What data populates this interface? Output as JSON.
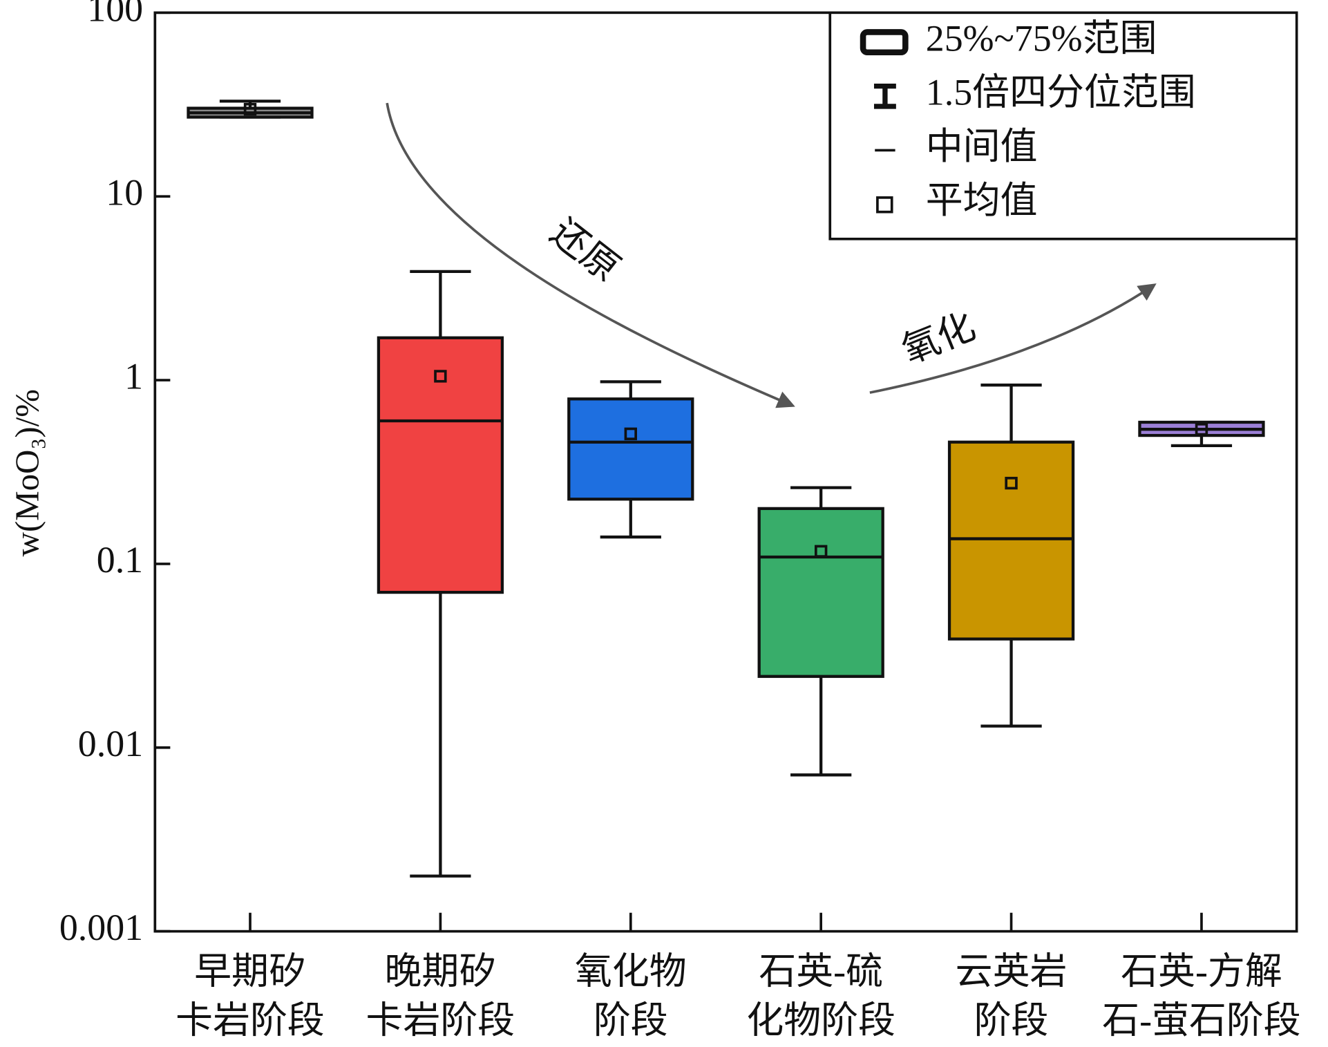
{
  "chart_data": {
    "type": "box",
    "y_label": "w(MoO₃)/%",
    "categories": [
      [
        "早期矽",
        "卡岩阶段"
      ],
      [
        "晚期矽",
        "卡岩阶段"
      ],
      [
        "氧化物",
        "阶段"
      ],
      [
        "石英-硫",
        "化物阶段"
      ],
      [
        "云英岩",
        "阶段"
      ],
      [
        "石英-方解",
        "石-萤石阶段"
      ]
    ],
    "boxes": [
      {
        "whisker_low": 27,
        "q1": 27,
        "median": 28.5,
        "q3": 30.2,
        "whisker_high": 33,
        "mean": 29.8,
        "color": "#8a8a8a"
      },
      {
        "whisker_low": 0.002,
        "q1": 0.07,
        "median": 0.6,
        "q3": 1.7,
        "whisker_high": 3.9,
        "mean": 1.05,
        "color": "#f04242"
      },
      {
        "whisker_low": 0.14,
        "q1": 0.225,
        "median": 0.46,
        "q3": 0.79,
        "whisker_high": 0.98,
        "mean": 0.51,
        "color": "#1e6fe0"
      },
      {
        "whisker_low": 0.0071,
        "q1": 0.0244,
        "median": 0.109,
        "q3": 0.2,
        "whisker_high": 0.26,
        "mean": 0.117,
        "color": "#38ad6a"
      },
      {
        "whisker_low": 0.0131,
        "q1": 0.039,
        "median": 0.137,
        "q3": 0.46,
        "whisker_high": 0.94,
        "mean": 0.275,
        "color": "#c99500"
      },
      {
        "whisker_low": 0.44,
        "q1": 0.5,
        "median": 0.54,
        "q3": 0.59,
        "whisker_high": 0.59,
        "mean": 0.54,
        "color": "#9b7fd6"
      }
    ],
    "ylim": [
      0.001,
      100
    ],
    "yticks": [
      0.001,
      0.01,
      0.1,
      1,
      10,
      100
    ],
    "log_y": true,
    "legend": [
      "25%~75%范围",
      "1.5倍四分位范围",
      "中间值",
      "平均值"
    ],
    "legend_position": "upper right",
    "annotations": [
      "还原",
      "氧化"
    ]
  }
}
